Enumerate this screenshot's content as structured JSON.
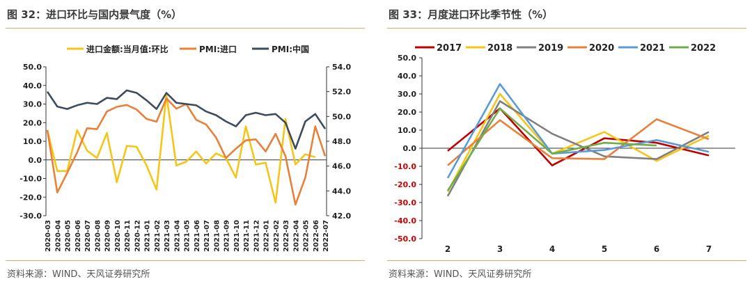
{
  "sources": {
    "left": "资料来源：WIND、天风证券研究所",
    "right": "资料来源：WIND、天风证券研究所"
  },
  "chart_data": [
    {
      "type": "line",
      "title": "图 32：进口环比与国内景气度（%）",
      "x": [
        "2020-03",
        "2020-04",
        "2020-05",
        "2020-06",
        "2020-07",
        "2020-08",
        "2020-09",
        "2020-10",
        "2020-11",
        "2020-12",
        "2021-01",
        "2021-02",
        "2021-03",
        "2021-04",
        "2021-05",
        "2021-06",
        "2021-07",
        "2021-08",
        "2021-09",
        "2021-10",
        "2021-11",
        "2021-12",
        "2022-01",
        "2022-02",
        "2022-03",
        "2022-04",
        "2022-05",
        "2022-06",
        "2022-07"
      ],
      "y_left": {
        "ylim": [
          -30,
          50
        ],
        "ticks": [
          "50.0",
          "40.0",
          "30.0",
          "20.0",
          "10.0",
          "0.0",
          "-10.0",
          "-20.0",
          "-30.0"
        ]
      },
      "y_right": {
        "ylim": [
          42,
          54
        ],
        "ticks": [
          "54.0",
          "52.0",
          "50.0",
          "48.0",
          "46.0",
          "44.0",
          "42.0"
        ]
      },
      "legend_position": "top",
      "series": [
        {
          "name": "进口金额:当月值:环比",
          "axis": "left",
          "color": "#f5c518",
          "values": [
            16,
            -6,
            -6,
            16,
            5,
            1,
            14.5,
            -12,
            7.5,
            7,
            -3,
            -16,
            35,
            -3,
            -1,
            4.5,
            -2,
            3.5,
            1,
            -9.5,
            18,
            -2.5,
            -1.5,
            -23,
            22,
            -2.5,
            3,
            1.5,
            null
          ]
        },
        {
          "name": "PMI:进口",
          "axis": "left",
          "color": "#e8803a",
          "values": [
            16,
            -17.5,
            -7,
            4,
            17,
            16.5,
            26,
            28.5,
            29.5,
            27,
            22,
            20.5,
            33,
            27.5,
            30,
            21.5,
            19,
            12,
            1,
            6,
            10.5,
            11,
            4.5,
            14,
            2,
            -24,
            -9.5,
            18,
            2
          ]
        },
        {
          "name": "PMI:中国",
          "axis": "right",
          "color": "#3d4b5c",
          "values": [
            52,
            50.8,
            50.6,
            50.9,
            51.1,
            51.0,
            51.5,
            51.4,
            52.1,
            51.9,
            51.3,
            50.6,
            51.9,
            51.1,
            51.0,
            50.9,
            50.4,
            50.1,
            49.6,
            49.2,
            50.1,
            50.3,
            50.1,
            50.2,
            49.5,
            47.4,
            49.6,
            50.2,
            49.0
          ]
        }
      ]
    },
    {
      "type": "line",
      "title": "图 33：月度进口环比季节性（%）",
      "categories": [
        "2",
        "3",
        "4",
        "5",
        "6",
        "7"
      ],
      "ylim": [
        -50,
        50
      ],
      "yticks": [
        "50.0",
        "40.0",
        "30.0",
        "20.0",
        "10.0",
        "0.0",
        "-10.0",
        "-20.0",
        "-30.0",
        "-40.0",
        "-50.0"
      ],
      "legend_position": "top",
      "series": [
        {
          "name": "2017",
          "color": "#c00000",
          "values": [
            -1.5,
            22,
            -9.5,
            5.5,
            3,
            -4
          ]
        },
        {
          "name": "2018",
          "color": "#f5c518",
          "values": [
            -24,
            30,
            -3,
            9,
            -7,
            7
          ]
        },
        {
          "name": "2019",
          "color": "#7f7f7f",
          "values": [
            -26.5,
            26,
            8,
            -4.5,
            -6,
            9
          ]
        },
        {
          "name": "2020",
          "color": "#e8803a",
          "values": [
            -9.5,
            15.5,
            -5.5,
            -6,
            16,
            5
          ]
        },
        {
          "name": "2021",
          "color": "#5b9bd5",
          "values": [
            -16.5,
            35.5,
            -3,
            -1,
            4.5,
            -2
          ]
        },
        {
          "name": "2022",
          "color": "#70ad47",
          "values": [
            -23.5,
            22,
            -3,
            3,
            1.5,
            null
          ]
        }
      ]
    }
  ]
}
